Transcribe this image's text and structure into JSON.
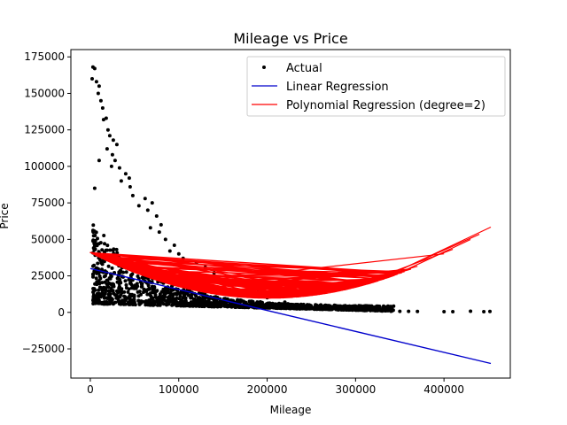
{
  "chart_data": {
    "type": "scatter",
    "title": "Mileage vs Price",
    "xlabel": "Mileage",
    "ylabel": "Price",
    "xlim": [
      -22000,
      475000
    ],
    "ylim": [
      -45000,
      180000
    ],
    "xticks": [
      0,
      100000,
      200000,
      300000,
      400000
    ],
    "yticks": [
      -25000,
      0,
      25000,
      50000,
      75000,
      100000,
      125000,
      150000,
      175000
    ],
    "grid": false,
    "legend_position": "top-right",
    "colors": {
      "actual": "#000000",
      "linear": "#0000cc",
      "poly": "#ff0000"
    },
    "series": [
      {
        "name": "Actual",
        "kind": "scatter",
        "points": [
          [
            3000,
            168000
          ],
          [
            5000,
            167000
          ],
          [
            2000,
            160000
          ],
          [
            7000,
            158000
          ],
          [
            10000,
            155000
          ],
          [
            9000,
            150000
          ],
          [
            12000,
            145000
          ],
          [
            14000,
            140000
          ],
          [
            18000,
            133000
          ],
          [
            15000,
            132000
          ],
          [
            20000,
            125000
          ],
          [
            22000,
            121000
          ],
          [
            26000,
            118000
          ],
          [
            30000,
            115000
          ],
          [
            19000,
            112000
          ],
          [
            25000,
            108000
          ],
          [
            28000,
            104000
          ],
          [
            24000,
            100000
          ],
          [
            33000,
            99000
          ],
          [
            40000,
            95000
          ],
          [
            44000,
            92000
          ],
          [
            10000,
            104000
          ],
          [
            35000,
            90000
          ],
          [
            45000,
            86000
          ],
          [
            48000,
            80000
          ],
          [
            5000,
            85000
          ],
          [
            62000,
            78000
          ],
          [
            70000,
            75000
          ],
          [
            55000,
            73000
          ],
          [
            65000,
            70000
          ],
          [
            75000,
            66000
          ],
          [
            80000,
            60000
          ],
          [
            68000,
            58000
          ],
          [
            78000,
            55000
          ],
          [
            85000,
            50000
          ],
          [
            95000,
            46000
          ],
          [
            90000,
            42000
          ],
          [
            100000,
            40000
          ],
          [
            105000,
            37000
          ],
          [
            120000,
            34000
          ],
          [
            130000,
            31000
          ],
          [
            140000,
            27000
          ],
          [
            160000,
            22000
          ],
          [
            175000,
            18000
          ],
          [
            190000,
            14000
          ],
          [
            200000,
            10000
          ],
          [
            220000,
            7000
          ],
          [
            240000,
            5000
          ],
          [
            250000,
            3500
          ],
          [
            260000,
            2500
          ],
          [
            280000,
            1800
          ],
          [
            300000,
            1500
          ],
          [
            310000,
            1200
          ],
          [
            330000,
            1000
          ],
          [
            340000,
            800
          ],
          [
            350000,
            700
          ],
          [
            360000,
            700
          ],
          [
            370000,
            600
          ],
          [
            400000,
            500
          ],
          [
            410000,
            500
          ],
          [
            430000,
            800
          ],
          [
            445000,
            500
          ],
          [
            452000,
            600
          ]
        ]
      },
      {
        "name": "Linear Regression",
        "kind": "line",
        "points": [
          [
            0,
            30000
          ],
          [
            453000,
            -35000
          ]
        ]
      },
      {
        "name": "Polynomial Regression (degree=2)",
        "kind": "line",
        "a": 7.692e-07,
        "b": -0.31,
        "c": 41000,
        "x_range": [
          0,
          453000
        ],
        "outlier_x": [
          370000,
          400000,
          410000,
          430000,
          440000,
          453000
        ]
      }
    ]
  }
}
